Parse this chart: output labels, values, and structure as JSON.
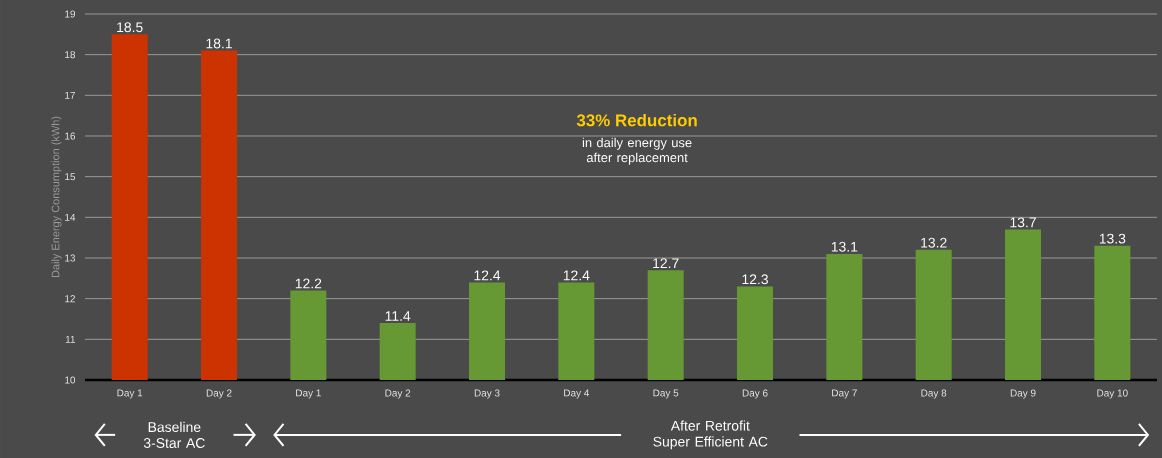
{
  "chart_data": {
    "type": "bar",
    "ylabel": "Daily Energy Consumption (kWh)",
    "categories": [
      "Day 1",
      "Day 2",
      "Day 1",
      "Day 2",
      "Day 3",
      "Day 4",
      "Day 5",
      "Day 6",
      "Day 7",
      "Day 8",
      "Day 9",
      "Day 10"
    ],
    "values": [
      18.5,
      18.1,
      12.2,
      11.4,
      12.4,
      12.4,
      12.7,
      12.3,
      13.1,
      13.2,
      13.7,
      13.3
    ],
    "colors": [
      "#cc3300",
      "#cc3300",
      "#669933",
      "#669933",
      "#669933",
      "#669933",
      "#669933",
      "#669933",
      "#669933",
      "#669933",
      "#669933",
      "#669933"
    ],
    "ylim": [
      10,
      19
    ],
    "yticks": [
      10,
      11,
      12,
      13,
      14,
      15,
      16,
      17,
      18,
      19
    ],
    "grid": "y",
    "data_labels": true,
    "annotations": [
      "33% Reduction",
      "in daily energy use after replacement",
      "Baseline 3-Star AC",
      "After Retrofit Super Efficient AC"
    ]
  }
}
